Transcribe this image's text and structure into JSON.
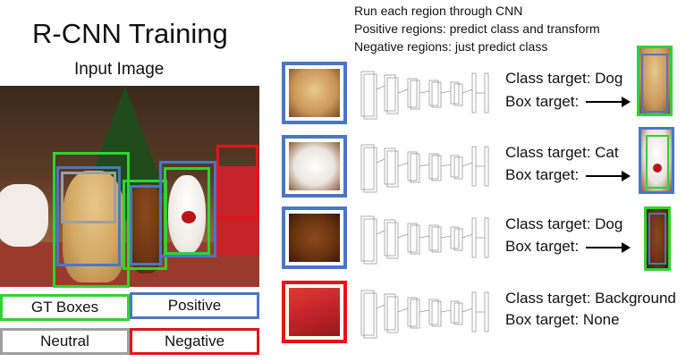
{
  "title": "R-CNN Training",
  "subtitle": "Input Image",
  "instructions": [
    "Run each region through CNN",
    "Positive regions: predict class and transform",
    "Negative regions: just predict class"
  ],
  "legend": {
    "gt": "GT Boxes",
    "positive": "Positive",
    "neutral": "Neutral",
    "negative": "Negative"
  },
  "colors": {
    "gt": "#2fd42f",
    "positive": "#4a77c4",
    "neutral": "#9e9e9e",
    "negative": "#e3141b"
  },
  "rows": [
    {
      "class_target": "Class target: Dog",
      "box_target": "Box target:",
      "has_arrow": true,
      "crop": "dog-golden"
    },
    {
      "class_target": "Class target: Cat",
      "box_target": "Box target:",
      "has_arrow": true,
      "crop": "cat-white"
    },
    {
      "class_target": "Class target: Dog",
      "box_target": "Box target:",
      "has_arrow": true,
      "crop": "dog-brown"
    },
    {
      "class_target": "Class target: Background",
      "box_target": "Box target: None",
      "has_arrow": false,
      "crop": "background-gift"
    }
  ]
}
